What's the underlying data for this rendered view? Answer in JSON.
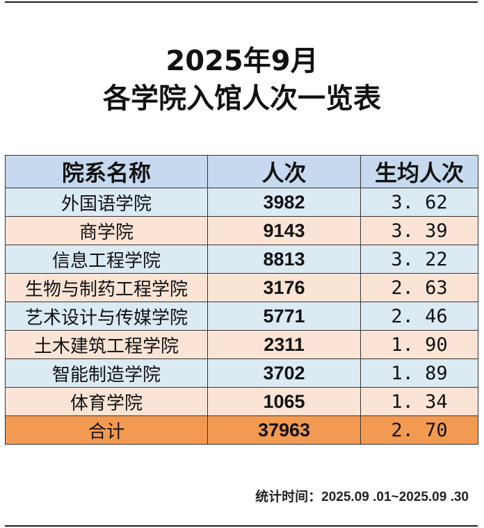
{
  "title_line1": "2025年9月",
  "title_line2": "各学院入馆人次一览表",
  "table": {
    "headers": [
      "院系名称",
      "人次",
      "生均人次"
    ],
    "rows": [
      {
        "name": "外国语学院",
        "visits": "3982",
        "avg": "3. 62",
        "shade": "blue"
      },
      {
        "name": "商学院",
        "visits": "9143",
        "avg": "3. 39",
        "shade": "peach"
      },
      {
        "name": "信息工程学院",
        "visits": "8813",
        "avg": "3. 22",
        "shade": "blue"
      },
      {
        "name": "生物与制药工程学院",
        "visits": "3176",
        "avg": "2. 63",
        "shade": "peach"
      },
      {
        "name": "艺术设计与传媒学院",
        "visits": "5771",
        "avg": "2. 46",
        "shade": "blue"
      },
      {
        "name": "土木建筑工程学院",
        "visits": "2311",
        "avg": "1. 90",
        "shade": "peach"
      },
      {
        "name": "智能制造学院",
        "visits": "3702",
        "avg": "1. 89",
        "shade": "blue"
      },
      {
        "name": "体育学院",
        "visits": "1065",
        "avg": "1. 34",
        "shade": "peach"
      }
    ],
    "total": {
      "name": "合计",
      "visits": "37963",
      "avg": "2. 70"
    }
  },
  "colors": {
    "header": "#c6d9ee",
    "row_blue": "#dbeaf3",
    "row_peach": "#fbe4d6",
    "total": "#f39a52"
  },
  "footer": "统计时间：2025.09 .01~2025.09 .30"
}
